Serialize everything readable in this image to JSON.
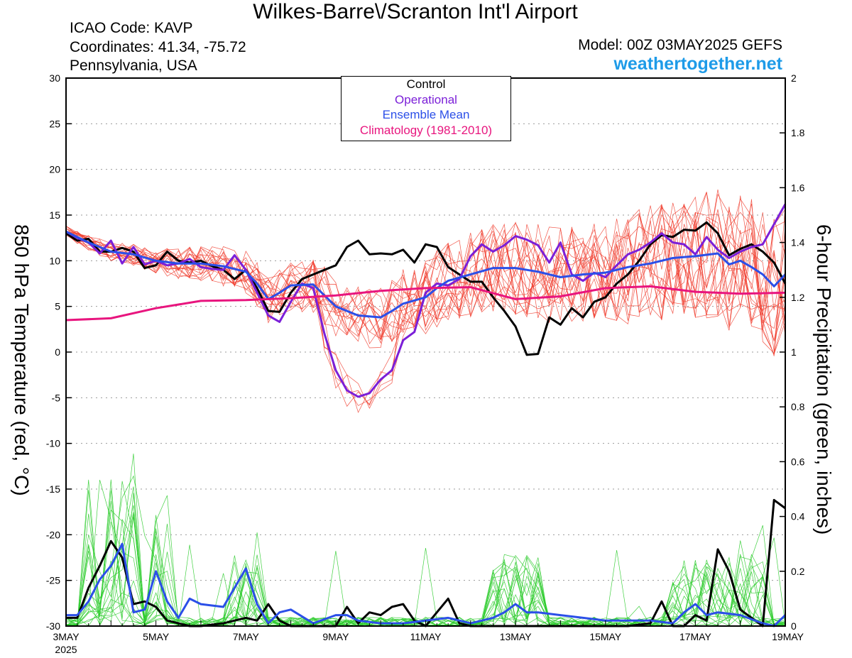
{
  "header": {
    "title": "Wilkes-Barre\\/Scranton Int'l Airport",
    "icao": "ICAO Code: KAVP",
    "coordinates": "Coordinates: 41.34, -75.72",
    "region": "Pennsylvania, USA",
    "model": "Model: 00Z 03MAY2025 GEFS",
    "website": "weathertogether.net"
  },
  "colors": {
    "control": "#000000",
    "operational": "#7b1fd8",
    "ensemble_mean": "#2b4fe8",
    "climatology": "#e8157e",
    "members_temp": "#f03a2a",
    "members_precip": "#2ecc2e",
    "website": "#1e9be8"
  },
  "chart_data": {
    "type": "line",
    "title": "Wilkes-Barre\\/Scranton Int'l Airport",
    "ylabel": "850 hPa Temperature (red, °C)",
    "ylabel_right": "6-hour Precipitation (green, inches)",
    "ylim": [
      -30,
      30
    ],
    "ylim_right": [
      0,
      2
    ],
    "yticks": [
      "30",
      "25",
      "20",
      "15",
      "10",
      "5",
      "0",
      "-5",
      "-10",
      "-15",
      "-20",
      "-25",
      "-30"
    ],
    "yticks_right": [
      "2",
      "1.8",
      "1.6",
      "1.4",
      "1.2",
      "1",
      "0.8",
      "0.6",
      "0.4",
      "0.2",
      "0"
    ],
    "xlim_days": [
      0,
      16
    ],
    "xticks": [
      {
        "label": "3MAY",
        "day": 0
      },
      {
        "label": "5MAY",
        "day": 2
      },
      {
        "label": "7MAY",
        "day": 4
      },
      {
        "label": "9MAY",
        "day": 6
      },
      {
        "label": "11MAY",
        "day": 8
      },
      {
        "label": "13MAY",
        "day": 10
      },
      {
        "label": "15MAY",
        "day": 12
      },
      {
        "label": "17MAY",
        "day": 14
      },
      {
        "label": "19MAY",
        "day": 16
      }
    ],
    "x_year_label": "2025",
    "grid": "horizontal dotted",
    "legend": {
      "position": "top-center",
      "entries": [
        "Control",
        "Operational",
        "Ensemble Mean",
        "Climatology (1981-2010)"
      ]
    },
    "series": [
      {
        "name": "Control",
        "axis": "left",
        "points": [
          [
            0,
            13
          ],
          [
            0.25,
            12.2
          ],
          [
            0.5,
            12.4
          ],
          [
            0.75,
            11
          ],
          [
            1,
            11
          ],
          [
            1.25,
            11.4
          ],
          [
            1.5,
            11
          ],
          [
            1.75,
            9.2
          ],
          [
            2,
            9.5
          ],
          [
            2.25,
            11
          ],
          [
            2.5,
            10
          ],
          [
            2.75,
            9.8
          ],
          [
            3,
            10
          ],
          [
            3.25,
            9.4
          ],
          [
            3.5,
            9
          ],
          [
            3.75,
            8
          ],
          [
            4,
            9
          ],
          [
            4.25,
            7
          ],
          [
            4.5,
            4.5
          ],
          [
            4.75,
            4.4
          ],
          [
            5,
            6.5
          ],
          [
            5.25,
            8
          ],
          [
            5.5,
            8.5
          ],
          [
            5.75,
            9
          ],
          [
            6,
            9.5
          ],
          [
            6.25,
            11.5
          ],
          [
            6.5,
            12.2
          ],
          [
            6.75,
            10.7
          ],
          [
            7,
            10.8
          ],
          [
            7.25,
            10.7
          ],
          [
            7.5,
            11.2
          ],
          [
            7.75,
            9.8
          ],
          [
            8,
            11.8
          ],
          [
            8.25,
            11.5
          ],
          [
            8.5,
            9.3
          ],
          [
            8.75,
            8.5
          ],
          [
            9,
            7.7
          ],
          [
            9.25,
            7.7
          ],
          [
            9.5,
            6
          ],
          [
            9.75,
            4.5
          ],
          [
            10,
            2.8
          ],
          [
            10.25,
            -0.3
          ],
          [
            10.5,
            -0.2
          ],
          [
            10.75,
            3.8
          ],
          [
            11,
            3
          ],
          [
            11.25,
            4.8
          ],
          [
            11.5,
            3.8
          ],
          [
            11.75,
            5.5
          ],
          [
            12,
            6
          ],
          [
            12.25,
            7.5
          ],
          [
            12.5,
            8.5
          ],
          [
            12.75,
            10
          ],
          [
            13,
            11.8
          ],
          [
            13.25,
            12.8
          ],
          [
            13.5,
            12.6
          ],
          [
            13.75,
            13.4
          ],
          [
            14,
            13.3
          ],
          [
            14.25,
            14.2
          ],
          [
            14.5,
            13
          ],
          [
            14.75,
            10.6
          ],
          [
            15,
            11.3
          ],
          [
            15.25,
            11.8
          ],
          [
            15.5,
            11
          ],
          [
            15.75,
            9.8
          ],
          [
            16,
            7.5
          ]
        ]
      },
      {
        "name": "Operational",
        "axis": "left",
        "points": [
          [
            0,
            13.2
          ],
          [
            0.25,
            12.5
          ],
          [
            0.5,
            12
          ],
          [
            0.75,
            10.8
          ],
          [
            1,
            12.2
          ],
          [
            1.25,
            9.7
          ],
          [
            1.5,
            11.5
          ],
          [
            1.75,
            9.6
          ],
          [
            2,
            10
          ],
          [
            2.25,
            9.5
          ],
          [
            2.5,
            9.7
          ],
          [
            2.75,
            10.2
          ],
          [
            3,
            9.3
          ],
          [
            3.25,
            9.1
          ],
          [
            3.5,
            9
          ],
          [
            3.75,
            10.6
          ],
          [
            4,
            9
          ],
          [
            4.25,
            6.5
          ],
          [
            4.5,
            4
          ],
          [
            4.75,
            3.3
          ],
          [
            5,
            5.5
          ],
          [
            5.25,
            7.5
          ],
          [
            5.5,
            7
          ],
          [
            5.75,
            2
          ],
          [
            6,
            -2
          ],
          [
            6.25,
            -4.2
          ],
          [
            6.5,
            -4.9
          ],
          [
            6.75,
            -4.5
          ],
          [
            7,
            -3
          ],
          [
            7.25,
            -2
          ],
          [
            7.5,
            1.3
          ],
          [
            7.75,
            2.2
          ],
          [
            8,
            6.5
          ],
          [
            8.25,
            7.5
          ],
          [
            8.5,
            7.3
          ],
          [
            8.75,
            8
          ],
          [
            9,
            10.5
          ],
          [
            9.25,
            11.8
          ],
          [
            9.5,
            11
          ],
          [
            9.75,
            11.7
          ],
          [
            10,
            12.7
          ],
          [
            10.25,
            12.3
          ],
          [
            10.5,
            11.7
          ],
          [
            10.75,
            9.8
          ],
          [
            11,
            12
          ],
          [
            11.25,
            8.5
          ],
          [
            11.5,
            7.8
          ],
          [
            11.75,
            8.7
          ],
          [
            12,
            8.2
          ],
          [
            12.25,
            9.5
          ],
          [
            12.5,
            10.7
          ],
          [
            12.75,
            11.2
          ],
          [
            13,
            12
          ],
          [
            13.25,
            13
          ],
          [
            13.5,
            12
          ],
          [
            13.75,
            11.8
          ],
          [
            14,
            10.7
          ],
          [
            14.25,
            12.6
          ],
          [
            14.5,
            11.2
          ],
          [
            14.75,
            10.3
          ],
          [
            15,
            11
          ],
          [
            15.25,
            11.5
          ],
          [
            15.5,
            11.8
          ],
          [
            15.75,
            14
          ],
          [
            16,
            16.2
          ]
        ]
      },
      {
        "name": "Ensemble Mean",
        "axis": "left",
        "points": [
          [
            0,
            13.2
          ],
          [
            0.5,
            12
          ],
          [
            1,
            11
          ],
          [
            1.5,
            10.7
          ],
          [
            2,
            10
          ],
          [
            2.5,
            9.7
          ],
          [
            3,
            9.7
          ],
          [
            3.5,
            9.4
          ],
          [
            4,
            8.8
          ],
          [
            4.25,
            7.5
          ],
          [
            4.5,
            5.8
          ],
          [
            4.75,
            6.5
          ],
          [
            5,
            7.3
          ],
          [
            5.5,
            7.4
          ],
          [
            6,
            5
          ],
          [
            6.5,
            4
          ],
          [
            7,
            3.8
          ],
          [
            7.25,
            4.5
          ],
          [
            7.5,
            5.3
          ],
          [
            8,
            6
          ],
          [
            8.25,
            7
          ],
          [
            8.5,
            7.8
          ],
          [
            9,
            8.5
          ],
          [
            9.5,
            9.2
          ],
          [
            10,
            9.2
          ],
          [
            10.5,
            8.8
          ],
          [
            11,
            8.2
          ],
          [
            11.5,
            8.5
          ],
          [
            12,
            8.7
          ],
          [
            12.5,
            9.3
          ],
          [
            13,
            9.7
          ],
          [
            13.5,
            10.3
          ],
          [
            14,
            10.5
          ],
          [
            14.5,
            10.8
          ],
          [
            14.75,
            9.6
          ],
          [
            15,
            10
          ],
          [
            15.25,
            9.3
          ],
          [
            15.5,
            8.5
          ],
          [
            15.75,
            7.2
          ],
          [
            16,
            8.5
          ]
        ]
      },
      {
        "name": "Climatology (1981-2010)",
        "axis": "left",
        "points": [
          [
            0,
            3.5
          ],
          [
            1,
            3.7
          ],
          [
            2,
            4.8
          ],
          [
            3,
            5.6
          ],
          [
            4,
            5.7
          ],
          [
            5,
            5.9
          ],
          [
            6,
            6.2
          ],
          [
            7,
            6.7
          ],
          [
            8,
            7
          ],
          [
            9,
            7.1
          ],
          [
            10,
            5.8
          ],
          [
            11,
            6.1
          ],
          [
            12,
            7
          ],
          [
            13,
            7.2
          ],
          [
            14,
            6.6
          ],
          [
            15,
            6.4
          ],
          [
            16,
            6.5
          ]
        ]
      },
      {
        "name": "Control",
        "axis": "right",
        "points": [
          [
            0,
            0.03
          ],
          [
            0.25,
            0.03
          ],
          [
            0.5,
            0.14
          ],
          [
            0.75,
            0.22
          ],
          [
            1,
            0.31
          ],
          [
            1.25,
            0.25
          ],
          [
            1.5,
            0.08
          ],
          [
            1.75,
            0.09
          ],
          [
            2,
            0.07
          ],
          [
            2.25,
            0.02
          ],
          [
            2.5,
            0.01
          ],
          [
            2.75,
            0
          ],
          [
            3,
            0
          ],
          [
            3.5,
            0.01
          ],
          [
            4,
            0.03
          ],
          [
            4.25,
            0.02
          ],
          [
            4.5,
            0.08
          ],
          [
            4.75,
            0.02
          ],
          [
            5,
            0
          ],
          [
            5.5,
            0
          ],
          [
            6,
            0
          ],
          [
            6.25,
            0.07
          ],
          [
            6.5,
            0.01
          ],
          [
            6.75,
            0.05
          ],
          [
            7,
            0.04
          ],
          [
            7.25,
            0.07
          ],
          [
            7.5,
            0.08
          ],
          [
            7.75,
            0.02
          ],
          [
            8,
            0
          ],
          [
            8.25,
            0.05
          ],
          [
            8.5,
            0.1
          ],
          [
            8.75,
            0.01
          ],
          [
            9,
            0
          ],
          [
            9.5,
            0
          ],
          [
            10,
            0
          ],
          [
            11,
            0
          ],
          [
            12,
            0
          ],
          [
            12.5,
            0
          ],
          [
            13,
            0.01
          ],
          [
            13.25,
            0.09
          ],
          [
            13.5,
            0
          ],
          [
            13.75,
            0
          ],
          [
            14,
            0.04
          ],
          [
            14.25,
            0.02
          ],
          [
            14.5,
            0.28
          ],
          [
            14.75,
            0.2
          ],
          [
            15,
            0.06
          ],
          [
            15.25,
            0.03
          ],
          [
            15.5,
            0
          ],
          [
            15.75,
            0.46
          ],
          [
            16,
            0.43
          ]
        ]
      },
      {
        "name": "Ensemble Mean",
        "axis": "right",
        "points": [
          [
            0,
            0.04
          ],
          [
            0.25,
            0.04
          ],
          [
            0.5,
            0.09
          ],
          [
            0.75,
            0.17
          ],
          [
            1,
            0.22
          ],
          [
            1.25,
            0.3
          ],
          [
            1.5,
            0.05
          ],
          [
            1.75,
            0.06
          ],
          [
            2,
            0.2
          ],
          [
            2.25,
            0.09
          ],
          [
            2.5,
            0.03
          ],
          [
            2.75,
            0.1
          ],
          [
            3,
            0.08
          ],
          [
            3.5,
            0.07
          ],
          [
            4,
            0.21
          ],
          [
            4.25,
            0.08
          ],
          [
            4.5,
            0.01
          ],
          [
            4.75,
            0.05
          ],
          [
            5,
            0.06
          ],
          [
            5.5,
            0.01
          ],
          [
            6,
            0.04
          ],
          [
            6.25,
            0.04
          ],
          [
            6.5,
            0.02
          ],
          [
            7,
            0.01
          ],
          [
            7.5,
            0.01
          ],
          [
            8,
            0.02
          ],
          [
            8.5,
            0.03
          ],
          [
            9,
            0.01
          ],
          [
            9.5,
            0.03
          ],
          [
            9.75,
            0.05
          ],
          [
            10,
            0.08
          ],
          [
            10.25,
            0.05
          ],
          [
            10.5,
            0.05
          ],
          [
            11,
            0.04
          ],
          [
            11.5,
            0.03
          ],
          [
            12,
            0.02
          ],
          [
            12.5,
            0.02
          ],
          [
            13,
            0.02
          ],
          [
            13.5,
            0.01
          ],
          [
            13.75,
            0.05
          ],
          [
            14,
            0.08
          ],
          [
            14.25,
            0.04
          ],
          [
            14.5,
            0.05
          ],
          [
            15,
            0.04
          ],
          [
            15.5,
            0.01
          ],
          [
            15.75,
            0
          ],
          [
            16,
            0.04
          ]
        ]
      }
    ]
  }
}
